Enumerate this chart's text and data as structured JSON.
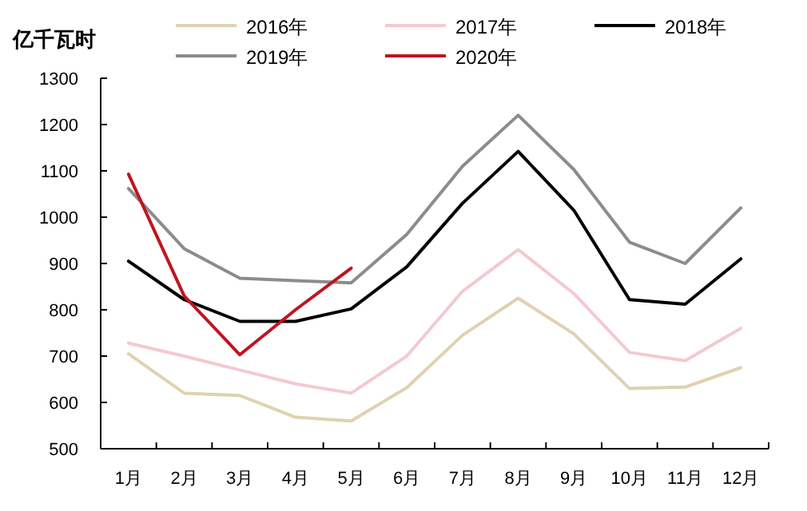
{
  "chart_data": {
    "type": "line",
    "ylabel": "亿千瓦时",
    "categories": [
      "1月",
      "2月",
      "3月",
      "4月",
      "5月",
      "6月",
      "7月",
      "8月",
      "9月",
      "10月",
      "11月",
      "12月"
    ],
    "series": [
      {
        "name": "2016年",
        "color": "#e0d2b0",
        "values": [
          705,
          620,
          615,
          568,
          560,
          632,
          745,
          825,
          748,
          630,
          633,
          675
        ]
      },
      {
        "name": "2017年",
        "color": "#f4c9cf",
        "values": [
          728,
          700,
          670,
          640,
          620,
          700,
          840,
          930,
          835,
          708,
          690,
          760
        ]
      },
      {
        "name": "2018年",
        "color": "#000000",
        "values": [
          905,
          822,
          775,
          775,
          802,
          893,
          1030,
          1142,
          1015,
          822,
          812,
          910
        ]
      },
      {
        "name": "2019年",
        "color": "#8c8c8c",
        "values": [
          1062,
          932,
          868,
          863,
          858,
          963,
          1110,
          1220,
          1103,
          946,
          900,
          1020
        ]
      },
      {
        "name": "2020年",
        "color": "#c0141e",
        "values": [
          1093,
          830,
          703,
          800,
          890,
          null,
          null,
          null,
          null,
          null,
          null,
          null
        ]
      }
    ],
    "ylim": [
      500,
      1300
    ],
    "yticks": [
      500,
      600,
      700,
      800,
      900,
      1000,
      1100,
      1200,
      1300
    ],
    "legend": "top",
    "grid": false
  }
}
